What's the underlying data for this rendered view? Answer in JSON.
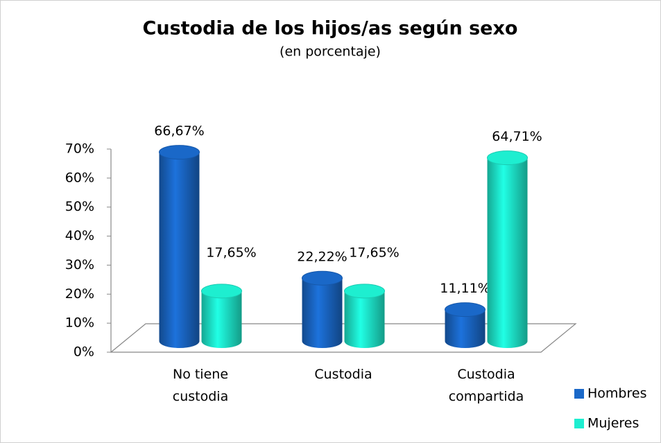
{
  "chart_data": {
    "type": "bar3d",
    "title": "Custodia de los hijos/as según sexo",
    "subtitle": "(en porcentaje)",
    "categories": [
      "No tiene custodia",
      "Custodia",
      "Custodia compartida"
    ],
    "series": [
      {
        "name": "Hombres",
        "color": "#1a68c8",
        "values": [
          66.67,
          22.22,
          11.11
        ],
        "value_labels": [
          "66,67%",
          "22,22%",
          "11,11%"
        ]
      },
      {
        "name": "Mujeres",
        "color": "#1eeed0",
        "values": [
          17.65,
          17.65,
          64.71
        ],
        "value_labels": [
          "17,65%",
          "17,65%",
          "64,71%"
        ]
      }
    ],
    "ylim": [
      0,
      70
    ],
    "yticks": [
      {
        "value": 0,
        "label": "0%"
      },
      {
        "value": 10,
        "label": "10%"
      },
      {
        "value": 20,
        "label": "20%"
      },
      {
        "value": 30,
        "label": "30%"
      },
      {
        "value": 40,
        "label": "40%"
      },
      {
        "value": 50,
        "label": "50%"
      },
      {
        "value": 60,
        "label": "60%"
      },
      {
        "value": 70,
        "label": "70%"
      }
    ],
    "legend": "bottom-right"
  }
}
